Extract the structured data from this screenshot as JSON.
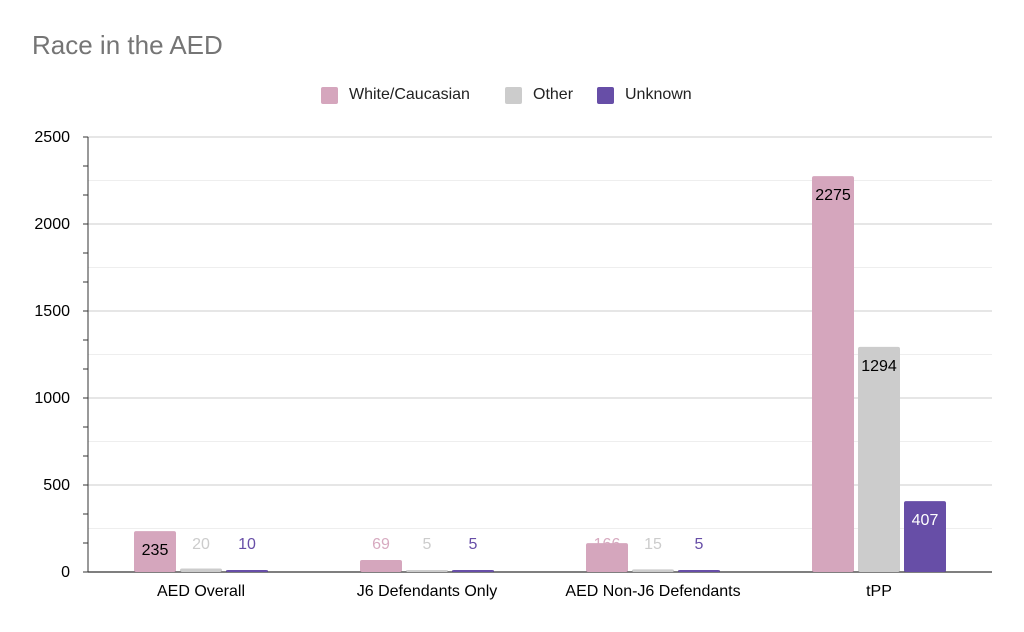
{
  "chart_data": {
    "type": "bar",
    "title": "Race in the AED",
    "xlabel": "",
    "ylabel": "",
    "ylim": [
      0,
      2500
    ],
    "yticks": [
      0,
      500,
      1000,
      1500,
      2000,
      2500
    ],
    "grid": true,
    "legend_position": "top",
    "categories": [
      "AED Overall",
      "J6 Defendants Only",
      "AED Non-J6 Defendants",
      "tPP"
    ],
    "series": [
      {
        "name": "White/Caucasian",
        "color": "#d5a6bd",
        "values": [
          235,
          69,
          166,
          2275
        ]
      },
      {
        "name": "Other",
        "color": "#cccccc",
        "values": [
          20,
          5,
          15,
          1294
        ]
      },
      {
        "name": "Unknown",
        "color": "#674ea7",
        "values": [
          10,
          5,
          5,
          407
        ]
      }
    ]
  }
}
